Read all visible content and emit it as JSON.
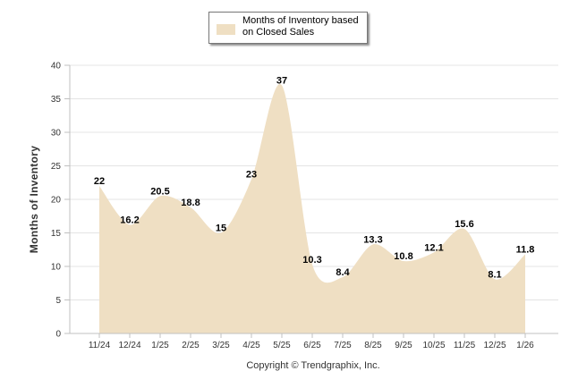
{
  "chart_data": {
    "type": "area",
    "series": [
      {
        "name": "Months of Inventory based\non Closed Sales",
        "values": [
          22,
          16.2,
          20.5,
          18.8,
          15,
          23,
          37,
          10.3,
          8.4,
          13.3,
          10.8,
          12.1,
          15.6,
          8.1,
          11.8
        ]
      }
    ],
    "categories": [
      "11/24",
      "12/24",
      "1/25",
      "2/25",
      "3/25",
      "4/25",
      "5/25",
      "6/25",
      "7/25",
      "8/25",
      "9/25",
      "10/25",
      "11/25",
      "12/25",
      "1/26"
    ],
    "data_labels": [
      "22",
      "16.2",
      "20.5",
      "18.8",
      "15",
      "23",
      "37",
      "10.3",
      "8.4",
      "13.3",
      "10.8",
      "12.1",
      "15.6",
      "8.1",
      "11.8"
    ],
    "yticks": [
      "0",
      "5",
      "10",
      "15",
      "20",
      "25",
      "30",
      "35",
      "40"
    ],
    "ylim": [
      0,
      40
    ],
    "ylabel": "Months of Inventory",
    "xlabel": "",
    "legend_position": "top-center",
    "grid": true,
    "colors": {
      "fill": "#efdfc3",
      "grid": "#e4e4e4",
      "axis": "#c0c0c0"
    }
  },
  "footer": {
    "credit": "Copyright © Trendgraphix, Inc."
  }
}
